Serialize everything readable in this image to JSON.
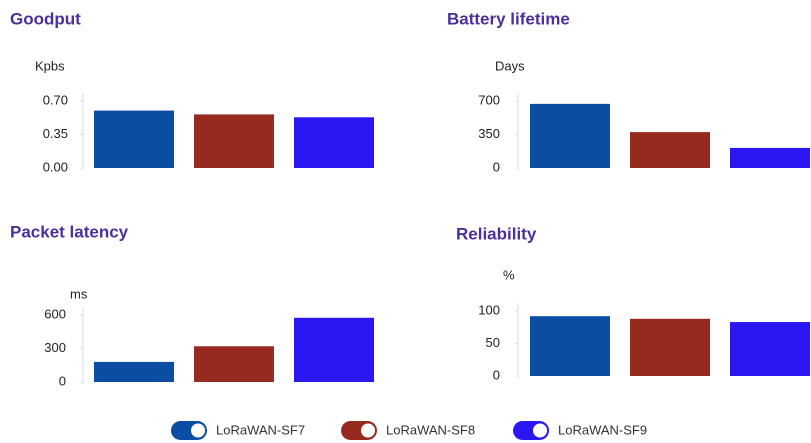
{
  "chart_data": [
    {
      "type": "bar",
      "title": "Goodput",
      "y_label": "Kpbs",
      "values": [
        0.6,
        0.56,
        0.53
      ],
      "ylim": [
        0,
        0.7
      ],
      "yticks": [
        {
          "value": 0,
          "label": "0.00"
        },
        {
          "value": 0.35,
          "label": "0.35"
        },
        {
          "value": 0.7,
          "label": "0.70"
        }
      ]
    },
    {
      "type": "bar",
      "title": "Battery lifetime",
      "y_label": "Days",
      "values": [
        670,
        375,
        210
      ],
      "ylim": [
        0,
        700
      ],
      "yticks": [
        0,
        350,
        700
      ]
    },
    {
      "type": "bar",
      "title": "Packet latency",
      "y_label": "ms",
      "values": [
        180,
        320,
        575
      ],
      "ylim": [
        0,
        600
      ],
      "yticks": [
        0,
        300,
        600
      ]
    },
    {
      "type": "bar",
      "title": "Reliability",
      "y_label": "%",
      "values": [
        92,
        88,
        83
      ],
      "ylim": [
        0,
        100
      ],
      "yticks": [
        0,
        50,
        100
      ]
    }
  ],
  "legend": [
    {
      "name": "LoRaWAN-SF7",
      "color": "#0a4da2"
    },
    {
      "name": "LoRaWAN-SF8",
      "color": "#962a1e"
    },
    {
      "name": "LoRaWAN-SF9",
      "color": "#2b17f4"
    }
  ]
}
